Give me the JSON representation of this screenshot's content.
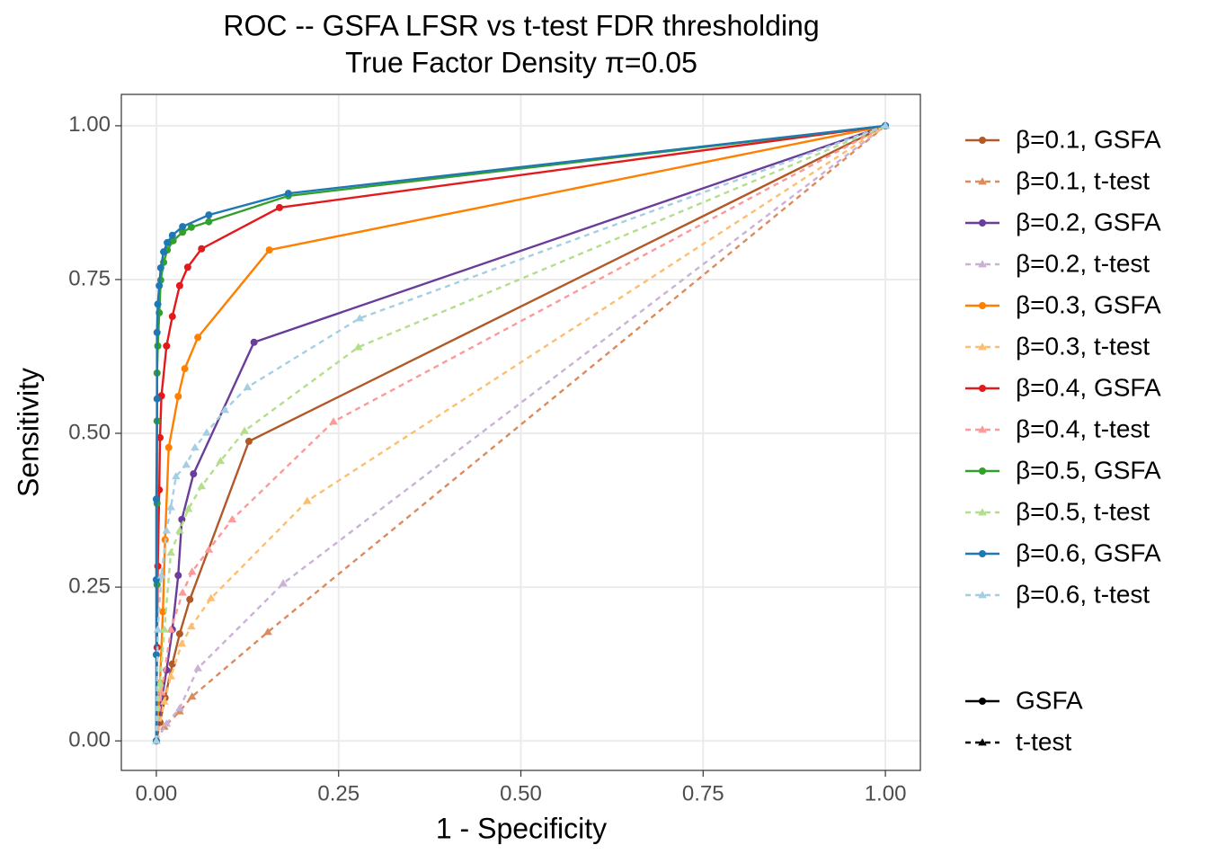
{
  "chart_data": {
    "type": "line",
    "title": "ROC -- GSFA LFSR vs t-test FDR thresholding",
    "subtitle": "True Factor Density π=0.05",
    "x_label": "1 - Specificity",
    "y_label": "Sensitivity",
    "xlim": [
      -0.048,
      1.048
    ],
    "ylim": [
      -0.048,
      1.051
    ],
    "xticks": [
      {
        "value": 0,
        "label": "0.00"
      },
      {
        "value": 0.25,
        "label": "0.25"
      },
      {
        "value": 0.5,
        "label": "0.50"
      },
      {
        "value": 0.75,
        "label": "0.75"
      },
      {
        "value": 1,
        "label": "1.00"
      }
    ],
    "yticks": [
      {
        "value": 0,
        "label": "0.00"
      },
      {
        "value": 0.25,
        "label": "0.25"
      },
      {
        "value": 0.5,
        "label": "0.50"
      },
      {
        "value": 0.75,
        "label": "0.75"
      },
      {
        "value": 1,
        "label": "1.00"
      }
    ],
    "grid": true,
    "series": [
      {
        "name": "β=0.1, GSFA",
        "color": "#b15928",
        "dash": "solid",
        "marker": "circle",
        "x": [
          0,
          0.005,
          0.012,
          0.022,
          0.032,
          0.046,
          0.127,
          1
        ],
        "values": [
          0,
          0.03,
          0.07,
          0.125,
          0.174,
          0.23,
          0.487,
          1
        ]
      },
      {
        "name": "β=0.1, t-test",
        "color": "#dc8b5d",
        "dash": "dashed",
        "marker": "triangle",
        "x": [
          0,
          0.011,
          0.032,
          0.049,
          0.153,
          1
        ],
        "values": [
          0,
          0.023,
          0.048,
          0.072,
          0.177,
          1
        ]
      },
      {
        "name": "β=0.2, GSFA",
        "color": "#6a3d9a",
        "dash": "solid",
        "marker": "circle",
        "x": [
          0,
          0.007,
          0.014,
          0.022,
          0.03,
          0.035,
          0.051,
          0.134,
          1
        ],
        "values": [
          0,
          0.064,
          0.115,
          0.181,
          0.269,
          0.36,
          0.434,
          0.648,
          1
        ]
      },
      {
        "name": "β=0.2, t-test",
        "color": "#cab2d6",
        "dash": "dashed",
        "marker": "triangle",
        "x": [
          0,
          0.014,
          0.032,
          0.057,
          0.174,
          1
        ],
        "values": [
          0,
          0.028,
          0.053,
          0.118,
          0.256,
          1
        ]
      },
      {
        "name": "β=0.3, GSFA",
        "color": "#ff7f00",
        "dash": "solid",
        "marker": "circle",
        "x": [
          0,
          0.005,
          0.009,
          0.012,
          0.017,
          0.03,
          0.039,
          0.057,
          0.155,
          1
        ],
        "values": [
          0,
          0.094,
          0.21,
          0.327,
          0.477,
          0.56,
          0.605,
          0.656,
          0.798,
          1
        ]
      },
      {
        "name": "β=0.3, t-test",
        "color": "#fdbf6f",
        "dash": "dashed",
        "marker": "triangle",
        "x": [
          0,
          0.011,
          0.02,
          0.035,
          0.048,
          0.075,
          0.207,
          1
        ],
        "values": [
          0,
          0.064,
          0.105,
          0.158,
          0.186,
          0.232,
          0.39,
          1
        ]
      },
      {
        "name": "β=0.4, GSFA",
        "color": "#e31a1c",
        "dash": "solid",
        "marker": "circle",
        "x": [
          0,
          0.001,
          0.002,
          0.004,
          0.005,
          0.007,
          0.014,
          0.022,
          0.032,
          0.043,
          0.062,
          0.169,
          1
        ],
        "values": [
          0,
          0.152,
          0.284,
          0.408,
          0.493,
          0.561,
          0.642,
          0.69,
          0.74,
          0.77,
          0.8,
          0.867,
          1
        ]
      },
      {
        "name": "β=0.4, t-test",
        "color": "#fb9a99",
        "dash": "dashed",
        "marker": "triangle",
        "x": [
          0,
          0.007,
          0.02,
          0.036,
          0.049,
          0.072,
          0.104,
          0.243,
          1
        ],
        "values": [
          0,
          0.079,
          0.181,
          0.241,
          0.275,
          0.311,
          0.36,
          0.519,
          1
        ]
      },
      {
        "name": "β=0.5, GSFA",
        "color": "#33a02c",
        "dash": "solid",
        "marker": "circle",
        "x": [
          0,
          0.001,
          0.001,
          0.001,
          0.001,
          0.002,
          0.004,
          0.006,
          0.01,
          0.015,
          0.023,
          0.036,
          0.048,
          0.072,
          0.181,
          1
        ],
        "values": [
          0,
          0.254,
          0.386,
          0.52,
          0.598,
          0.642,
          0.696,
          0.749,
          0.778,
          0.798,
          0.813,
          0.827,
          0.835,
          0.844,
          0.886,
          1
        ]
      },
      {
        "name": "β=0.5, t-test",
        "color": "#b2df8a",
        "dash": "dashed",
        "marker": "triangle",
        "x": [
          0,
          0.005,
          0.011,
          0.02,
          0.032,
          0.044,
          0.062,
          0.088,
          0.121,
          0.277,
          1
        ],
        "values": [
          0,
          0.094,
          0.181,
          0.306,
          0.342,
          0.377,
          0.414,
          0.455,
          0.504,
          0.64,
          1
        ]
      },
      {
        "name": "β=0.6, GSFA",
        "color": "#1f78b4",
        "dash": "solid",
        "marker": "circle",
        "x": [
          0,
          0,
          0,
          0,
          0.001,
          0.001,
          0.002,
          0.004,
          0.006,
          0.01,
          0.015,
          0.022,
          0.036,
          0.072,
          0.181,
          1
        ],
        "values": [
          0,
          0.14,
          0.262,
          0.393,
          0.556,
          0.664,
          0.71,
          0.74,
          0.769,
          0.795,
          0.81,
          0.822,
          0.836,
          0.855,
          0.89,
          1
        ]
      },
      {
        "name": "β=0.6, t-test",
        "color": "#a6cee3",
        "dash": "dashed",
        "marker": "triangle",
        "x": [
          0,
          0.002,
          0.007,
          0.014,
          0.02,
          0.027,
          0.041,
          0.053,
          0.069,
          0.094,
          0.125,
          0.279,
          1
        ],
        "values": [
          0,
          0.181,
          0.269,
          0.342,
          0.38,
          0.43,
          0.449,
          0.477,
          0.501,
          0.538,
          0.575,
          0.687,
          1
        ]
      }
    ],
    "linetype_legend": [
      {
        "name": "GSFA",
        "dash": "solid",
        "marker": "circle"
      },
      {
        "name": "t-test",
        "dash": "dashed",
        "marker": "triangle"
      }
    ]
  }
}
